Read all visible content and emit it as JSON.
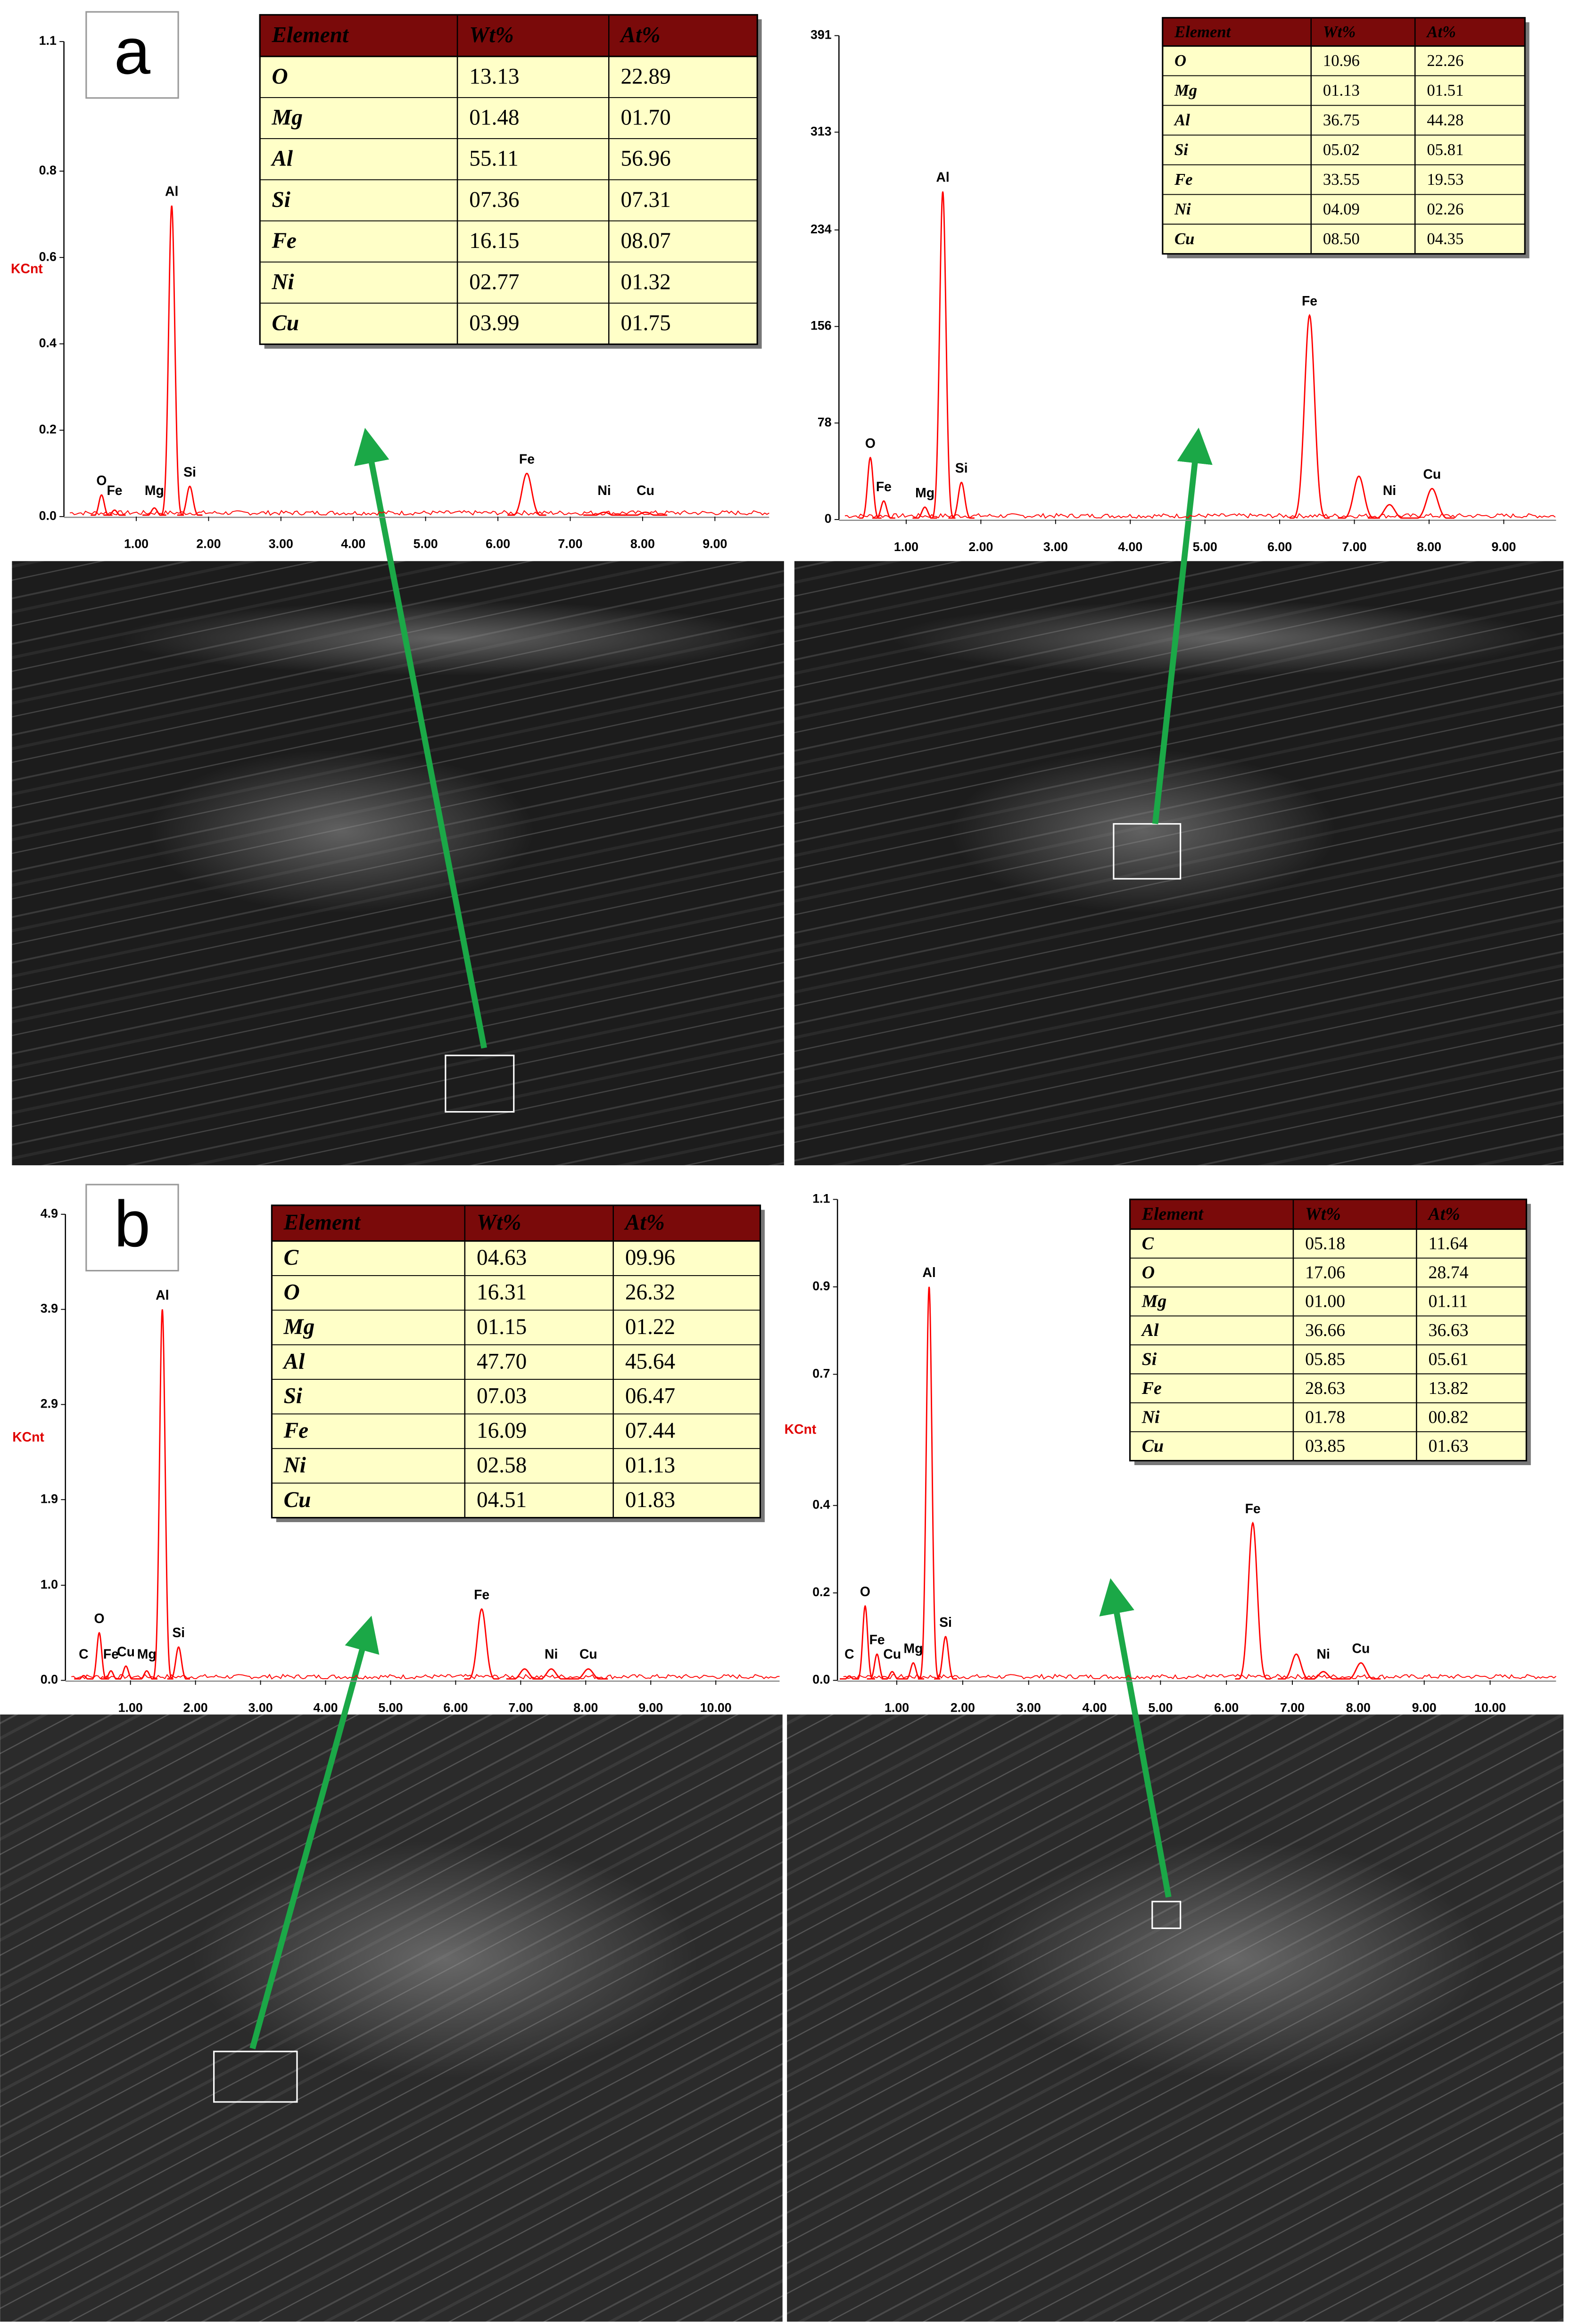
{
  "panel_labels": [
    "a",
    "b"
  ],
  "chart_data": [
    {
      "type": "line",
      "ylabel": "KCnt",
      "color": "#ff0000",
      "xlim": [
        0,
        9.75
      ],
      "ylim": [
        0,
        1.1
      ],
      "xticks": [
        {
          "value": 1,
          "label": "1.00"
        },
        {
          "value": 2,
          "label": "2.00"
        },
        {
          "value": 3,
          "label": "3.00"
        },
        {
          "value": 4,
          "label": "4.00"
        },
        {
          "value": 5,
          "label": "5.00"
        },
        {
          "value": 6,
          "label": "6.00"
        },
        {
          "value": 7,
          "label": "7.00"
        },
        {
          "value": 8,
          "label": "8.00"
        },
        {
          "value": 9,
          "label": "9.00"
        }
      ],
      "yticks": [
        {
          "value": 0,
          "label": "0.0"
        },
        0.2,
        0.4,
        0.6,
        0.8,
        1.1
      ],
      "peaks": [
        {
          "label": "O",
          "x": 0.52,
          "value": 0.05
        },
        {
          "label": "Fe",
          "x": 0.7,
          "value": 0.015
        },
        {
          "label": "Mg",
          "x": 1.25,
          "value": 0.02
        },
        {
          "label": "Al",
          "x": 1.49,
          "value": 0.72
        },
        {
          "label": "Si",
          "x": 1.74,
          "value": 0.07
        },
        {
          "label": "Fe",
          "x": 6.4,
          "value": 0.1
        },
        {
          "label": "Ni",
          "x": 7.47,
          "value": 0.01
        },
        {
          "label": "Cu",
          "x": 8.04,
          "value": 0.01
        }
      ]
    },
    {
      "type": "line",
      "ylabel": null,
      "color": "#ff0000",
      "xlim": [
        0.1,
        9.7
      ],
      "ylim": [
        0,
        391
      ],
      "xticks": [
        {
          "value": 1,
          "label": "1.00"
        },
        {
          "value": 2,
          "label": "2.00"
        },
        {
          "value": 3,
          "label": "3.00"
        },
        {
          "value": 4,
          "label": "4.00"
        },
        {
          "value": 5,
          "label": "5.00"
        },
        {
          "value": 6,
          "label": "6.00"
        },
        {
          "value": 7,
          "label": "7.00"
        },
        {
          "value": 8,
          "label": "8.00"
        },
        {
          "value": 9,
          "label": "9.00"
        }
      ],
      "yticks": [
        0,
        78,
        156,
        234,
        313,
        391
      ],
      "peaks": [
        {
          "label": "O",
          "x": 0.52,
          "value": 50
        },
        {
          "label": "Fe",
          "x": 0.7,
          "value": 15
        },
        {
          "label": "Mg",
          "x": 1.25,
          "value": 10
        },
        {
          "label": "Al",
          "x": 1.49,
          "value": 265
        },
        {
          "label": "Si",
          "x": 1.74,
          "value": 30
        },
        {
          "label": "Fe",
          "x": 6.4,
          "value": 165
        },
        {
          "label": null,
          "x": 7.06,
          "value": 35
        },
        {
          "label": "Ni",
          "x": 7.47,
          "value": 12
        },
        {
          "label": "Cu",
          "x": 8.04,
          "value": 25
        }
      ]
    },
    {
      "type": "line",
      "ylabel": "KCnt",
      "color": "#ff0000",
      "xlim": [
        0,
        10.98
      ],
      "ylim": [
        0,
        4.9
      ],
      "xticks": [
        {
          "value": 1,
          "label": "1.00"
        },
        {
          "value": 2,
          "label": "2.00"
        },
        {
          "value": 3,
          "label": "3.00"
        },
        {
          "value": 4,
          "label": "4.00"
        },
        {
          "value": 5,
          "label": "5.00"
        },
        {
          "value": 6,
          "label": "6.00"
        },
        {
          "value": 7,
          "label": "7.00"
        },
        {
          "value": 8,
          "label": "8.00"
        },
        {
          "value": 9,
          "label": "9.00"
        },
        {
          "value": 10,
          "label": "10.00"
        }
      ],
      "yticks": [
        {
          "value": 0,
          "label": "0.0"
        },
        {
          "value": 1,
          "label": "1.0"
        },
        1.9,
        2.9,
        3.9,
        4.9
      ],
      "peaks": [
        {
          "label": "C",
          "x": 0.28,
          "value": 0.05
        },
        {
          "label": "O",
          "x": 0.52,
          "value": 0.5
        },
        {
          "label": "Fe",
          "x": 0.7,
          "value": 0.1
        },
        {
          "label": "Cu",
          "x": 0.93,
          "value": 0.15
        },
        {
          "label": "Mg",
          "x": 1.25,
          "value": 0.1
        },
        {
          "label": "Al",
          "x": 1.49,
          "value": 3.9
        },
        {
          "label": "Si",
          "x": 1.74,
          "value": 0.35
        },
        {
          "label": "Fe",
          "x": 6.4,
          "value": 0.75
        },
        {
          "label": null,
          "x": 7.06,
          "value": 0.12
        },
        {
          "label": "Ni",
          "x": 7.47,
          "value": 0.12
        },
        {
          "label": "Cu",
          "x": 8.04,
          "value": 0.12
        }
      ]
    },
    {
      "type": "line",
      "ylabel": "KCnt",
      "color": "#ff0000",
      "xlim": [
        0.1,
        11
      ],
      "ylim": [
        0,
        1.1
      ],
      "xticks": [
        {
          "value": 1,
          "label": "1.00"
        },
        {
          "value": 2,
          "label": "2.00"
        },
        {
          "value": 3,
          "label": "3.00"
        },
        {
          "value": 4,
          "label": "4.00"
        },
        {
          "value": 5,
          "label": "5.00"
        },
        {
          "value": 6,
          "label": "6.00"
        },
        {
          "value": 7,
          "label": "7.00"
        },
        {
          "value": 8,
          "label": "8.00"
        },
        {
          "value": 9,
          "label": "9.00"
        },
        {
          "value": 10,
          "label": "10.00"
        }
      ],
      "yticks": [
        {
          "value": 0,
          "label": "0.0"
        },
        0.2,
        0.4,
        0.7,
        0.9,
        1.1
      ],
      "peaks": [
        {
          "label": "C",
          "x": 0.28,
          "value": 0.01
        },
        {
          "label": "O",
          "x": 0.52,
          "value": 0.17
        },
        {
          "label": "Fe",
          "x": 0.7,
          "value": 0.06
        },
        {
          "label": "Cu",
          "x": 0.93,
          "value": 0.02
        },
        {
          "label": "Mg",
          "x": 1.25,
          "value": 0.04
        },
        {
          "label": "Al",
          "x": 1.49,
          "value": 0.9
        },
        {
          "label": "Si",
          "x": 1.74,
          "value": 0.1
        },
        {
          "label": "Fe",
          "x": 6.4,
          "value": 0.36
        },
        {
          "label": null,
          "x": 7.06,
          "value": 0.06
        },
        {
          "label": "Ni",
          "x": 7.47,
          "value": 0.02
        },
        {
          "label": "Cu",
          "x": 8.04,
          "value": 0.04
        }
      ]
    }
  ],
  "tables": [
    {
      "header": [
        "Element",
        "Wt%",
        "At%"
      ],
      "rows": [
        [
          "O",
          "13.13",
          "22.89"
        ],
        [
          "Mg",
          "01.48",
          "01.70"
        ],
        [
          "Al",
          "55.11",
          "56.96"
        ],
        [
          "Si",
          "07.36",
          "07.31"
        ],
        [
          "Fe",
          "16.15",
          "08.07"
        ],
        [
          "Ni",
          "02.77",
          "01.32"
        ],
        [
          "Cu",
          "03.99",
          "01.75"
        ]
      ]
    },
    {
      "header": [
        "Element",
        "Wt%",
        "At%"
      ],
      "rows": [
        [
          "O",
          "10.96",
          "22.26"
        ],
        [
          "Mg",
          "01.13",
          "01.51"
        ],
        [
          "Al",
          "36.75",
          "44.28"
        ],
        [
          "Si",
          "05.02",
          "05.81"
        ],
        [
          "Fe",
          "33.55",
          "19.53"
        ],
        [
          "Ni",
          "04.09",
          "02.26"
        ],
        [
          "Cu",
          "08.50",
          "04.35"
        ]
      ]
    },
    {
      "header": [
        "Element",
        "Wt%",
        "At%"
      ],
      "rows": [
        [
          "C",
          "04.63",
          "09.96"
        ],
        [
          "O",
          "16.31",
          "26.32"
        ],
        [
          "Mg",
          "01.15",
          "01.22"
        ],
        [
          "Al",
          "47.70",
          "45.64"
        ],
        [
          "Si",
          "07.03",
          "06.47"
        ],
        [
          "Fe",
          "16.09",
          "07.44"
        ],
        [
          "Ni",
          "02.58",
          "01.13"
        ],
        [
          "Cu",
          "04.51",
          "01.83"
        ]
      ]
    },
    {
      "header": [
        "Element",
        "Wt%",
        "At%"
      ],
      "rows": [
        [
          "C",
          "05.18",
          "11.64"
        ],
        [
          "O",
          "17.06",
          "28.74"
        ],
        [
          "Mg",
          "01.00",
          "01.11"
        ],
        [
          "Al",
          "36.66",
          "36.63"
        ],
        [
          "Si",
          "05.85",
          "05.61"
        ],
        [
          "Fe",
          "28.63",
          "13.82"
        ],
        [
          "Ni",
          "01.78",
          "00.82"
        ],
        [
          "Cu",
          "03.85",
          "01.63"
        ]
      ]
    }
  ]
}
